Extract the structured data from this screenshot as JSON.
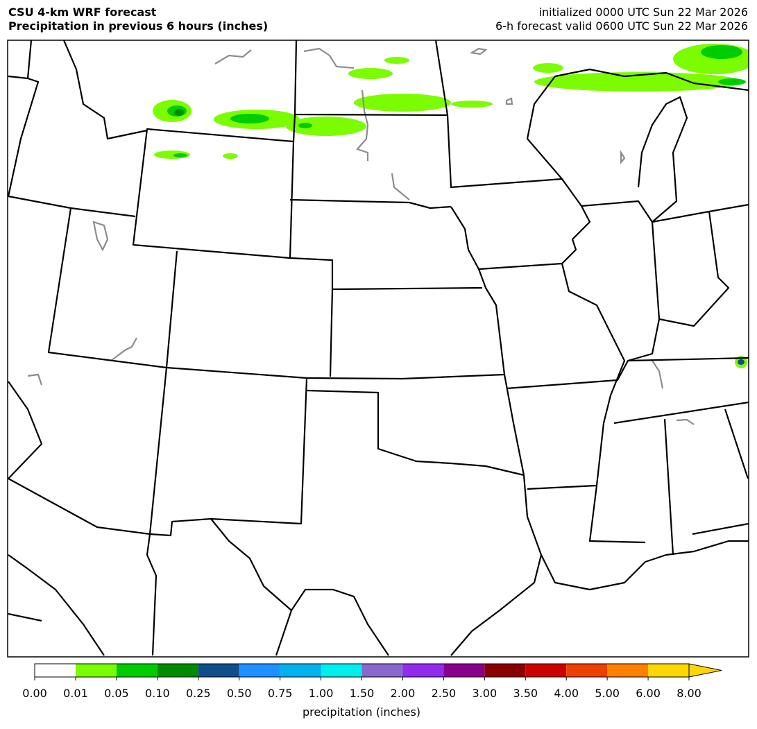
{
  "header": {
    "title": "CSU 4-km WRF forecast",
    "subtitle": "Precipitation in previous 6 hours (inches)",
    "initialized": "initialized 0000 UTC Sun 22 Mar 2026",
    "valid": "6-h forecast valid 0600 UTC Sun 22 Mar 2026"
  },
  "colorbar": {
    "label": "precipitation (inches)",
    "ticks": [
      {
        "value": 0,
        "label": "0.00"
      },
      {
        "value": 0.01,
        "label": "0.01"
      },
      {
        "value": 0.05,
        "label": "0.05"
      },
      {
        "value": 0.1,
        "label": "0.10"
      },
      {
        "value": 0.25,
        "label": "0.25"
      },
      {
        "value": 0.5,
        "label": "0.50"
      },
      {
        "value": 0.75,
        "label": "0.75"
      },
      {
        "value": 1,
        "label": "1.00"
      },
      {
        "value": 1.5,
        "label": "1.50"
      },
      {
        "value": 2,
        "label": "2.00"
      },
      {
        "value": 2.5,
        "label": "2.50"
      },
      {
        "value": 3,
        "label": "3.00"
      },
      {
        "value": 3.5,
        "label": "3.50"
      },
      {
        "value": 4,
        "label": "4.00"
      },
      {
        "value": 5,
        "label": "5.00"
      },
      {
        "value": 6,
        "label": "6.00"
      },
      {
        "value": 8,
        "label": "8.00"
      }
    ],
    "colors": [
      "#ffffff",
      "#7cfc00",
      "#00cd00",
      "#008b00",
      "#104e8b",
      "#1e90ff",
      "#00b2ee",
      "#00eeee",
      "#8968cd",
      "#912cee",
      "#8b008b",
      "#8b0000",
      "#cd0000",
      "#ee4000",
      "#ff7f00",
      "#ffd700"
    ],
    "extend": "max"
  }
}
